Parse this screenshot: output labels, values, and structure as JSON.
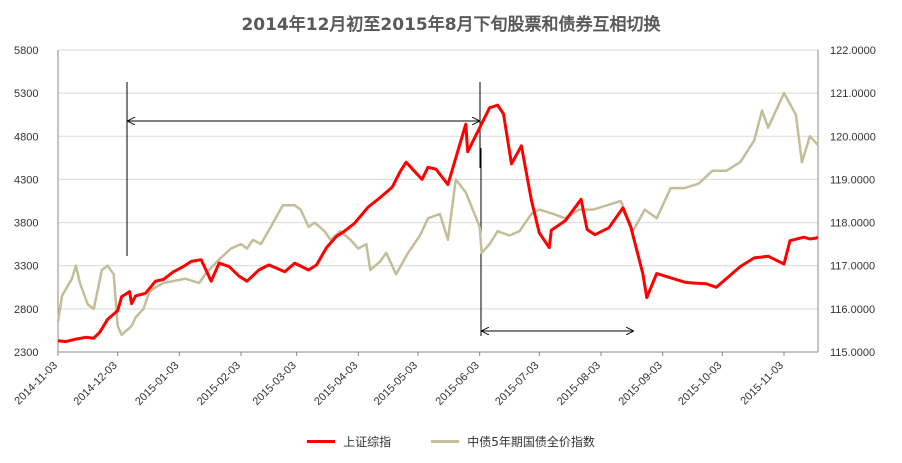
{
  "chart_data": {
    "type": "line",
    "title": "2014年12月初至2015年8月下旬股票和债券互相切换",
    "x_ticks": [
      "2014-11-03",
      "2014-12-03",
      "2015-01-03",
      "2015-02-03",
      "2015-03-03",
      "2015-04-03",
      "2015-05-03",
      "2015-06-03",
      "2015-07-03",
      "2015-08-03",
      "2015-09-03",
      "2015-10-03",
      "2015-11-03"
    ],
    "y_left": {
      "ticks": [
        2300,
        2800,
        3300,
        3800,
        4300,
        4800,
        5300,
        5800
      ],
      "range": [
        2300,
        5800
      ]
    },
    "y_right": {
      "ticks": [
        "115.0000",
        "116.0000",
        "117.0000",
        "118.0000",
        "119.0000",
        "120.0000",
        "121.0000",
        "122.0000"
      ],
      "range": [
        115,
        122
      ]
    },
    "grid": "horizontal",
    "legend_position": "bottom",
    "series": [
      {
        "name": "上证综指",
        "axis": "left",
        "color": "#ff0000",
        "points": [
          [
            "2014-11-03",
            2430
          ],
          [
            "2014-11-07",
            2420
          ],
          [
            "2014-11-12",
            2450
          ],
          [
            "2014-11-17",
            2470
          ],
          [
            "2014-11-21",
            2460
          ],
          [
            "2014-11-24",
            2530
          ],
          [
            "2014-11-28",
            2680
          ],
          [
            "2014-12-03",
            2780
          ],
          [
            "2014-12-05",
            2940
          ],
          [
            "2014-12-09",
            3000
          ],
          [
            "2014-12-10",
            2860
          ],
          [
            "2014-12-12",
            2950
          ],
          [
            "2014-12-17",
            2980
          ],
          [
            "2014-12-22",
            3120
          ],
          [
            "2014-12-26",
            3140
          ],
          [
            "2014-12-31",
            3230
          ],
          [
            "2015-01-05",
            3290
          ],
          [
            "2015-01-09",
            3350
          ],
          [
            "2015-01-14",
            3370
          ],
          [
            "2015-01-19",
            3120
          ],
          [
            "2015-01-23",
            3330
          ],
          [
            "2015-01-28",
            3290
          ],
          [
            "2015-02-02",
            3180
          ],
          [
            "2015-02-06",
            3120
          ],
          [
            "2015-02-12",
            3250
          ],
          [
            "2015-02-17",
            3310
          ],
          [
            "2015-02-25",
            3230
          ],
          [
            "2015-03-02",
            3330
          ],
          [
            "2015-03-09",
            3250
          ],
          [
            "2015-03-13",
            3310
          ],
          [
            "2015-03-18",
            3510
          ],
          [
            "2015-03-23",
            3640
          ],
          [
            "2015-03-27",
            3700
          ],
          [
            "2015-04-01",
            3790
          ],
          [
            "2015-04-08",
            3980
          ],
          [
            "2015-04-14",
            4090
          ],
          [
            "2015-04-20",
            4210
          ],
          [
            "2015-04-24",
            4390
          ],
          [
            "2015-04-27",
            4500
          ],
          [
            "2015-05-05",
            4300
          ],
          [
            "2015-05-08",
            4440
          ],
          [
            "2015-05-12",
            4420
          ],
          [
            "2015-05-18",
            4240
          ],
          [
            "2015-05-22",
            4550
          ],
          [
            "2015-05-27",
            4940
          ],
          [
            "2015-05-28",
            4620
          ],
          [
            "2015-06-03",
            4900
          ],
          [
            "2015-06-08",
            5130
          ],
          [
            "2015-06-12",
            5160
          ],
          [
            "2015-06-15",
            5060
          ],
          [
            "2015-06-19",
            4480
          ],
          [
            "2015-06-24",
            4690
          ],
          [
            "2015-06-29",
            4060
          ],
          [
            "2015-07-03",
            3680
          ],
          [
            "2015-07-08",
            3510
          ],
          [
            "2015-07-09",
            3710
          ],
          [
            "2015-07-16",
            3820
          ],
          [
            "2015-07-24",
            4070
          ],
          [
            "2015-07-27",
            3720
          ],
          [
            "2015-07-31",
            3660
          ],
          [
            "2015-08-07",
            3740
          ],
          [
            "2015-08-14",
            3970
          ],
          [
            "2015-08-18",
            3750
          ],
          [
            "2015-08-24",
            3210
          ],
          [
            "2015-08-26",
            2930
          ],
          [
            "2015-08-31",
            3210
          ],
          [
            "2015-09-07",
            3160
          ],
          [
            "2015-09-14",
            3110
          ],
          [
            "2015-09-18",
            3100
          ],
          [
            "2015-09-25",
            3090
          ],
          [
            "2015-09-30",
            3050
          ],
          [
            "2015-10-12",
            3290
          ],
          [
            "2015-10-19",
            3390
          ],
          [
            "2015-10-26",
            3410
          ],
          [
            "2015-11-03",
            3320
          ],
          [
            "2015-11-06",
            3590
          ],
          [
            "2015-11-13",
            3630
          ],
          [
            "2015-11-16",
            3610
          ],
          [
            "2015-11-19",
            3620
          ],
          [
            "2015-11-20",
            3630
          ]
        ]
      },
      {
        "name": "中债5年期国债全价指数",
        "axis": "right",
        "color": "#c4bd97",
        "points": [
          [
            "2014-11-03",
            115.7
          ],
          [
            "2014-11-05",
            116.3
          ],
          [
            "2014-11-10",
            116.7
          ],
          [
            "2014-11-12",
            117.0
          ],
          [
            "2014-11-14",
            116.6
          ],
          [
            "2014-11-18",
            116.1
          ],
          [
            "2014-11-21",
            116.0
          ],
          [
            "2014-11-25",
            116.9
          ],
          [
            "2014-11-28",
            117.0
          ],
          [
            "2014-12-01",
            116.8
          ],
          [
            "2014-12-03",
            115.6
          ],
          [
            "2014-12-05",
            115.4
          ],
          [
            "2014-12-10",
            115.6
          ],
          [
            "2014-12-12",
            115.8
          ],
          [
            "2014-12-16",
            116.0
          ],
          [
            "2014-12-19",
            116.4
          ],
          [
            "2014-12-22",
            116.5
          ],
          [
            "2014-12-26",
            116.6
          ],
          [
            "2015-01-06",
            116.7
          ],
          [
            "2015-01-13",
            116.6
          ],
          [
            "2015-01-16",
            116.8
          ],
          [
            "2015-01-22",
            117.1
          ],
          [
            "2015-01-29",
            117.4
          ],
          [
            "2015-02-03",
            117.5
          ],
          [
            "2015-02-06",
            117.4
          ],
          [
            "2015-02-09",
            117.6
          ],
          [
            "2015-02-13",
            117.5
          ],
          [
            "2015-02-18",
            117.9
          ],
          [
            "2015-02-24",
            118.4
          ],
          [
            "2015-03-02",
            118.4
          ],
          [
            "2015-03-05",
            118.3
          ],
          [
            "2015-03-09",
            117.9
          ],
          [
            "2015-03-12",
            118.0
          ],
          [
            "2015-03-17",
            117.8
          ],
          [
            "2015-03-20",
            117.6
          ],
          [
            "2015-03-25",
            117.8
          ],
          [
            "2015-03-30",
            117.6
          ],
          [
            "2015-04-03",
            117.4
          ],
          [
            "2015-04-07",
            117.5
          ],
          [
            "2015-04-09",
            116.9
          ],
          [
            "2015-04-14",
            117.1
          ],
          [
            "2015-04-17",
            117.3
          ],
          [
            "2015-04-22",
            116.8
          ],
          [
            "2015-04-28",
            117.3
          ],
          [
            "2015-05-04",
            117.7
          ],
          [
            "2015-05-08",
            118.1
          ],
          [
            "2015-05-14",
            118.2
          ],
          [
            "2015-05-18",
            117.6
          ],
          [
            "2015-05-22",
            119.0
          ],
          [
            "2015-05-27",
            118.7
          ],
          [
            "2015-06-03",
            117.9
          ],
          [
            "2015-06-04",
            117.3
          ],
          [
            "2015-06-08",
            117.5
          ],
          [
            "2015-06-12",
            117.8
          ],
          [
            "2015-06-18",
            117.7
          ],
          [
            "2015-06-23",
            117.8
          ],
          [
            "2015-06-29",
            118.2
          ],
          [
            "2015-07-03",
            118.3
          ],
          [
            "2015-07-10",
            118.2
          ],
          [
            "2015-07-16",
            118.1
          ],
          [
            "2015-07-23",
            118.3
          ],
          [
            "2015-07-30",
            118.3
          ],
          [
            "2015-08-06",
            118.4
          ],
          [
            "2015-08-13",
            118.5
          ],
          [
            "2015-08-19",
            117.8
          ],
          [
            "2015-08-25",
            118.3
          ],
          [
            "2015-08-31",
            118.1
          ],
          [
            "2015-09-07",
            118.8
          ],
          [
            "2015-09-14",
            118.8
          ],
          [
            "2015-09-21",
            118.9
          ],
          [
            "2015-09-28",
            119.2
          ],
          [
            "2015-10-05",
            119.2
          ],
          [
            "2015-10-12",
            119.4
          ],
          [
            "2015-10-19",
            119.9
          ],
          [
            "2015-10-23",
            120.6
          ],
          [
            "2015-10-26",
            120.2
          ],
          [
            "2015-11-03",
            121.0
          ],
          [
            "2015-11-09",
            120.5
          ],
          [
            "2015-11-12",
            119.4
          ],
          [
            "2015-11-16",
            120.0
          ],
          [
            "2015-11-20",
            119.8
          ]
        ]
      }
    ]
  }
}
